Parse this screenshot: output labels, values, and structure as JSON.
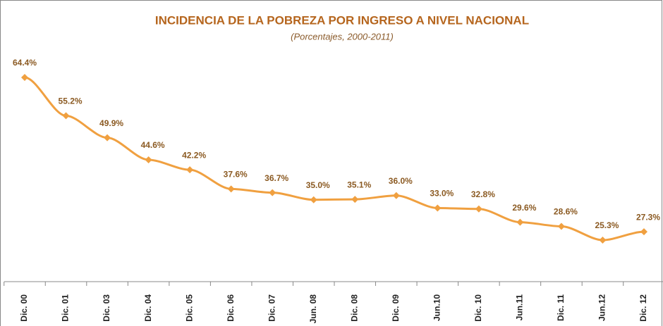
{
  "chart_data": {
    "type": "line",
    "title": "INCIDENCIA DE LA POBREZA POR INGRESO A NIVEL NACIONAL",
    "subtitle": "(Porcentajes, 2000-2011)",
    "categories": [
      "Dic. 00",
      "Dic. 01",
      "Dic. 03",
      "Dic. 04",
      "Dic. 05",
      "Dic. 06",
      "Dic. 07",
      "Jun. 08",
      "Dic. 08",
      "Dic. 09",
      "Jun.10",
      "Dic. 10",
      "Jun.11",
      "Dic. 11",
      "Jun.12",
      "Dic. 12"
    ],
    "series": [
      {
        "color": "#f0a040",
        "values": [
          64.4,
          55.2,
          49.9,
          44.6,
          42.2,
          37.6,
          36.7,
          35.0,
          35.1,
          36.0,
          33.0,
          32.8,
          29.6,
          28.6,
          25.3,
          27.3
        ],
        "value_labels": [
          "64.4%",
          "55.2%",
          "49.9%",
          "44.6%",
          "42.2%",
          "37.6%",
          "36.7%",
          "35.0%",
          "35.1%",
          "36.0%",
          "33.0%",
          "32.8%",
          "29.6%",
          "28.6%",
          "25.3%",
          "27.3%"
        ]
      }
    ]
  }
}
